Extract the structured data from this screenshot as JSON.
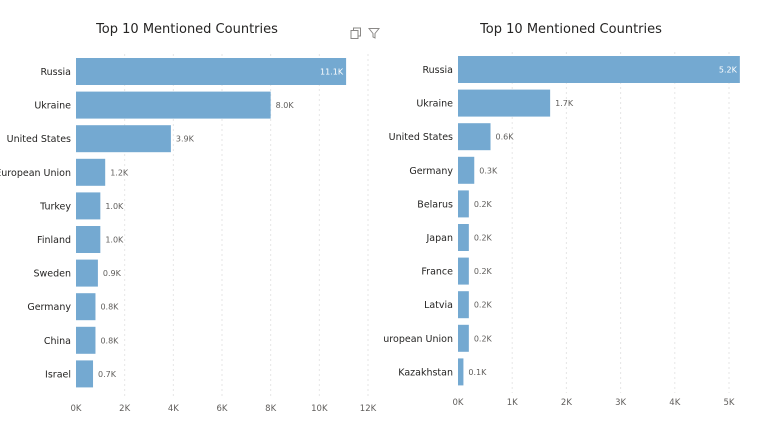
{
  "colors": {
    "bar": "#74a9d1",
    "grid": "#e6e6e6",
    "label": "#252423",
    "axis": "#605e5c",
    "value": "#605e5c"
  },
  "icons": {
    "copy": "copy-icon",
    "filter": "filter-icon"
  },
  "chart_data": [
    {
      "type": "bar",
      "orientation": "horizontal",
      "title": "Top 10 Mentioned Countries",
      "categories": [
        "Russia",
        "Ukraine",
        "United States",
        "European Union",
        "Turkey",
        "Finland",
        "Sweden",
        "Germany",
        "China",
        "Israel"
      ],
      "values": [
        11.1,
        8.0,
        3.9,
        1.2,
        1.0,
        1.0,
        0.9,
        0.8,
        0.8,
        0.7
      ],
      "value_labels": [
        "11.1K",
        "8.0K",
        "3.9K",
        "1.2K",
        "1.0K",
        "1.0K",
        "0.9K",
        "0.8K",
        "0.8K",
        "0.7K"
      ],
      "xticks": [
        "0K",
        "2K",
        "4K",
        "6K",
        "8K",
        "10K",
        "12K"
      ],
      "xlim": [
        0,
        12
      ],
      "grid": true
    },
    {
      "type": "bar",
      "orientation": "horizontal",
      "title": "Top 10 Mentioned Countries",
      "categories": [
        "Russia",
        "Ukraine",
        "United States",
        "Germany",
        "Belarus",
        "Japan",
        "France",
        "Latvia",
        "European Union",
        "Kazakhstan"
      ],
      "values": [
        5.2,
        1.7,
        0.6,
        0.3,
        0.2,
        0.2,
        0.2,
        0.2,
        0.2,
        0.1
      ],
      "value_labels": [
        "5.2K",
        "1.7K",
        "0.6K",
        "0.3K",
        "0.2K",
        "0.2K",
        "0.2K",
        "0.2K",
        "0.2K",
        "0.1K"
      ],
      "xticks": [
        "0K",
        "1K",
        "2K",
        "3K",
        "4K",
        "5K"
      ],
      "xlim": [
        0,
        5.2
      ],
      "grid": true
    }
  ]
}
